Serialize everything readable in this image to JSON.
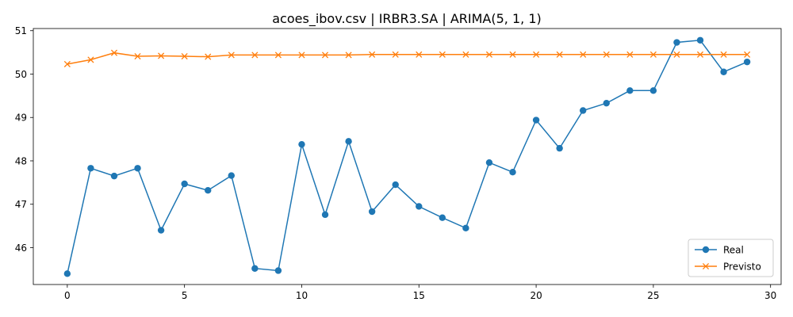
{
  "chart_data": {
    "type": "line",
    "title": "acoes_ibov.csv | IRBR3.SA | ARIMA(5, 1, 1)",
    "xlabel": "",
    "ylabel": "",
    "xlim": [
      -1.45,
      30.45
    ],
    "ylim": [
      45.15,
      51.05
    ],
    "xticks": [
      0,
      5,
      10,
      15,
      20,
      25,
      30
    ],
    "yticks": [
      46,
      47,
      48,
      49,
      50,
      51
    ],
    "grid": false,
    "legend": "bottom-right",
    "x": [
      0,
      1,
      2,
      3,
      4,
      5,
      6,
      7,
      8,
      9,
      10,
      11,
      12,
      13,
      14,
      15,
      16,
      17,
      18,
      19,
      20,
      21,
      22,
      23,
      24,
      25,
      26,
      27,
      28,
      29
    ],
    "series": [
      {
        "name": "Real",
        "color": "#1f77b4",
        "marker": "circle",
        "values": [
          45.4,
          47.83,
          47.65,
          47.83,
          46.4,
          47.47,
          47.32,
          47.66,
          45.52,
          45.47,
          48.38,
          46.76,
          48.45,
          46.83,
          47.45,
          46.95,
          46.69,
          46.45,
          47.96,
          47.74,
          48.94,
          48.29,
          49.16,
          49.33,
          49.62,
          49.62,
          50.73,
          50.78,
          50.05,
          50.28
        ]
      },
      {
        "name": "Previsto",
        "color": "#ff7f0e",
        "marker": "x",
        "values": [
          50.23,
          50.33,
          50.49,
          50.41,
          50.42,
          50.41,
          50.4,
          50.44,
          50.44,
          50.44,
          50.44,
          50.44,
          50.44,
          50.45,
          50.45,
          50.45,
          50.45,
          50.45,
          50.45,
          50.45,
          50.45,
          50.45,
          50.45,
          50.45,
          50.45,
          50.45,
          50.45,
          50.45,
          50.45,
          50.45
        ]
      }
    ]
  }
}
